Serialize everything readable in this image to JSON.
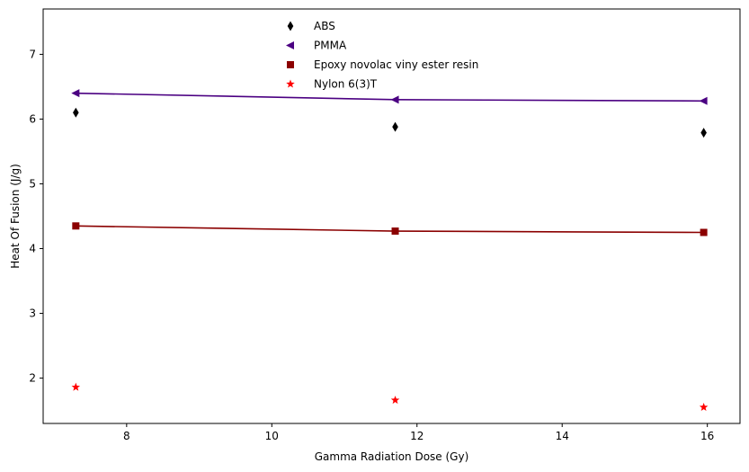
{
  "chart_data": {
    "type": "scatter",
    "title": "",
    "xlabel": "Gamma Radiation Dose (Gy)",
    "ylabel": "Heat Of Fusion (J/g)",
    "xlim": [
      6.85,
      16.45
    ],
    "ylim": [
      1.3,
      7.7
    ],
    "xticks": [
      8,
      10,
      12,
      14,
      16
    ],
    "yticks": [
      2,
      3,
      4,
      5,
      6,
      7
    ],
    "grid": false,
    "legend_position": "top-center",
    "series": [
      {
        "name": "ABS",
        "marker": "thin-diamond",
        "color": "#000000",
        "line": false,
        "x": [
          7.3,
          11.7,
          15.95
        ],
        "y": [
          6.1,
          5.88,
          5.79
        ]
      },
      {
        "name": "PMMA",
        "marker": "triangle-left",
        "color": "#4b0082",
        "line": true,
        "x": [
          7.3,
          11.7,
          15.95
        ],
        "y": [
          6.4,
          6.3,
          6.28
        ]
      },
      {
        "name": "Epoxy novolac viny ester resin",
        "marker": "square",
        "color": "#8b0000",
        "line": true,
        "x": [
          7.3,
          11.7,
          15.95
        ],
        "y": [
          4.35,
          4.27,
          4.25
        ]
      },
      {
        "name": "Nylon 6(3)T",
        "marker": "star",
        "color": "#ff0000",
        "line": false,
        "x": [
          7.3,
          11.7,
          15.95
        ],
        "y": [
          1.86,
          1.66,
          1.55
        ]
      }
    ]
  }
}
